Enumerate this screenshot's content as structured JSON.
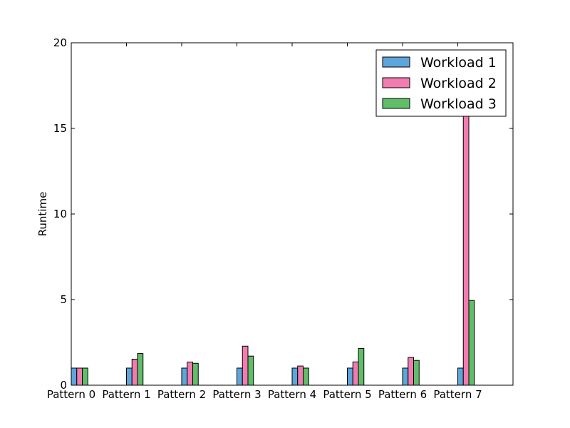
{
  "chart_data": {
    "type": "bar",
    "title": "",
    "xlabel": "",
    "ylabel": "Runtime",
    "categories": [
      "Pattern 0",
      "Pattern 1",
      "Pattern 2",
      "Pattern 3",
      "Pattern 4",
      "Pattern 5",
      "Pattern 6",
      "Pattern 7"
    ],
    "series": [
      {
        "name": "Workload 1",
        "color": "#5da5da",
        "values": [
          1,
          1,
          1,
          1,
          1,
          1,
          1,
          1
        ]
      },
      {
        "name": "Workload 2",
        "color": "#f17cb0",
        "values": [
          1,
          1.52,
          1.35,
          2.28,
          1.12,
          1.36,
          1.62,
          16.0
        ]
      },
      {
        "name": "Workload 3",
        "color": "#60bd68",
        "values": [
          1,
          1.85,
          1.28,
          1.7,
          1.0,
          2.15,
          1.45,
          4.95
        ]
      }
    ],
    "ylim": [
      0,
      20
    ],
    "yticks": [
      0,
      5,
      10,
      15,
      20
    ],
    "grid": false,
    "legend_position": "top-right"
  }
}
